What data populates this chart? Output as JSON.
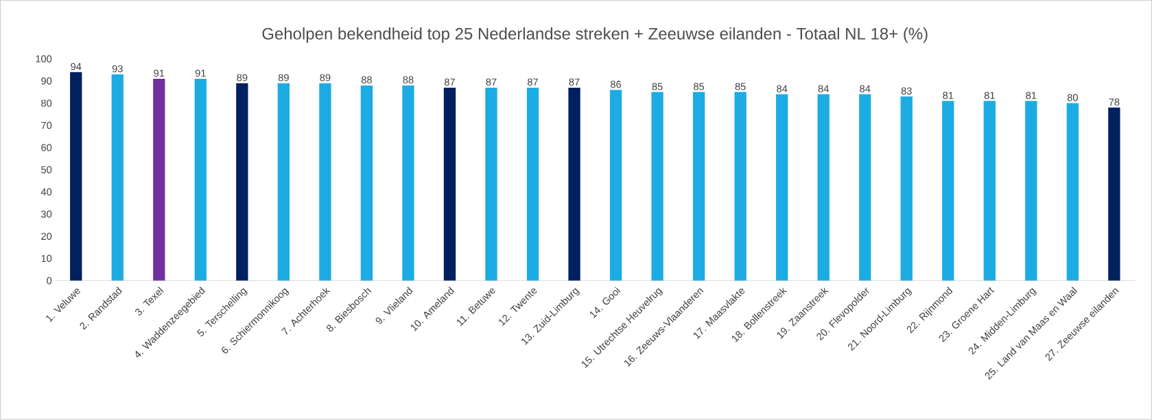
{
  "chart_data": {
    "type": "bar",
    "title": "Geholpen bekendheid top 25 Nederlandse streken + Zeeuwse eilanden - Totaal NL 18+ (%)",
    "categories": [
      "1. Veluwe",
      "2. Randstad",
      "3. Texel",
      "4. Waddenzeegebied",
      "5. Terschelling",
      "6. Schiermonnikoog",
      "7. Achterhoek",
      "8. Biesbosch",
      "9. Vlieland",
      "10. Ameland",
      "11. Betuwe",
      "12. Twente",
      "13. Zuid-Limburg",
      "14. Gooi",
      "15. Utrechtse Heuvelrug",
      "16. Zeeuws-Vlaanderen",
      "17. Maasvlakte",
      "18. Bollenstreek",
      "19. Zaanstreek",
      "20. Flevopolder",
      "21. Noord-Limburg",
      "22. Rijnmond",
      "23. Groene Hart",
      "24. Midden-Limburg",
      "25. Land van Maas en Waal",
      "27. Zeeuwse eilanden"
    ],
    "values": [
      94,
      93,
      91,
      91,
      89,
      89,
      89,
      88,
      88,
      87,
      87,
      87,
      87,
      86,
      85,
      85,
      85,
      84,
      84,
      84,
      83,
      81,
      81,
      81,
      80,
      78
    ],
    "colors": [
      "#002060",
      "#1cace3",
      "#7030a0",
      "#1cace3",
      "#002060",
      "#1cace3",
      "#1cace3",
      "#1cace3",
      "#1cace3",
      "#002060",
      "#1cace3",
      "#1cace3",
      "#002060",
      "#1cace3",
      "#1cace3",
      "#1cace3",
      "#1cace3",
      "#1cace3",
      "#1cace3",
      "#1cace3",
      "#1cace3",
      "#1cace3",
      "#1cace3",
      "#1cace3",
      "#1cace3",
      "#002060"
    ],
    "ylim": [
      0,
      100
    ],
    "yticks": [
      0,
      10,
      20,
      30,
      40,
      50,
      60,
      70,
      80,
      90,
      100
    ],
    "data_labels": true
  }
}
